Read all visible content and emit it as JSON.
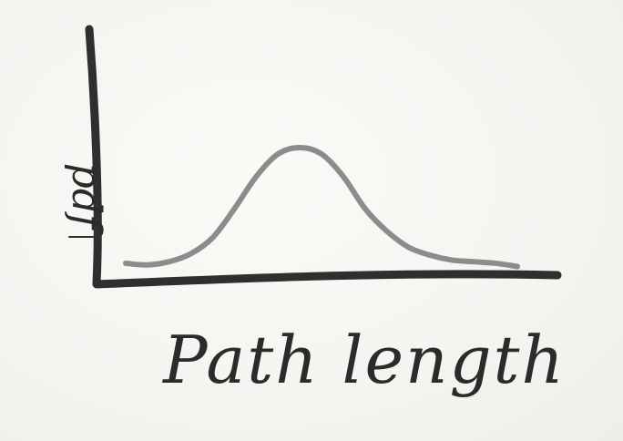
{
  "chart_data": {
    "type": "line",
    "title": "",
    "xlabel": "Path length",
    "ylabel": "pdf",
    "grid": false,
    "xlim": [
      0,
      1
    ],
    "ylim": [
      0,
      1
    ],
    "series": [
      {
        "x": [
          0.0,
          0.05,
          0.1,
          0.15,
          0.2,
          0.25,
          0.3,
          0.35,
          0.4,
          0.45,
          0.5,
          0.55,
          0.6,
          0.65,
          0.7,
          0.75,
          0.8,
          0.85,
          0.9
        ],
        "values": [
          0.04,
          0.03,
          0.05,
          0.1,
          0.2,
          0.38,
          0.58,
          0.72,
          0.76,
          0.72,
          0.58,
          0.38,
          0.24,
          0.14,
          0.09,
          0.06,
          0.05,
          0.04,
          0.02
        ],
        "color": "#8c8c8c"
      }
    ],
    "axis_color": "#2f2f2f"
  }
}
